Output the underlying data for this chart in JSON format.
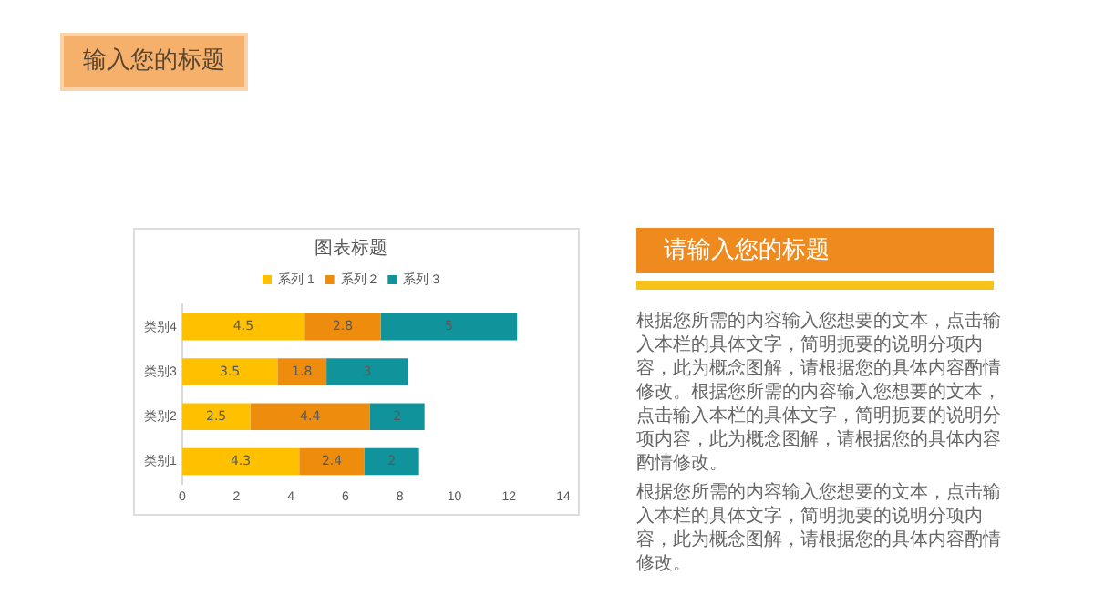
{
  "chart_data": {
    "type": "bar",
    "title": "图表标题",
    "orientation": "horizontal",
    "stacked": true,
    "categories": [
      "类别4",
      "类别3",
      "类别2",
      "类别1"
    ],
    "series": [
      {
        "name": "系列 1",
        "color": "#ffc000",
        "values": [
          4.5,
          3.5,
          2.5,
          4.3
        ]
      },
      {
        "name": "系列 2",
        "color": "#ee8c0e",
        "values": [
          2.8,
          1.8,
          4.4,
          2.4
        ]
      },
      {
        "name": "系列 3",
        "color": "#10939a",
        "values": [
          5,
          3,
          2,
          2
        ]
      }
    ],
    "xlim": [
      0,
      14
    ],
    "xticks": [
      0,
      2,
      4,
      6,
      8,
      10,
      12,
      14
    ],
    "grid": false,
    "legend": "top",
    "data_labels": true,
    "annotations": [
      "输入您的标题",
      "请输入您的标题",
      "根据您所需的内容输入您想要的文本，点击输入本栏的具体文字，简明扼要的说明分项内容，此为概念图解，请根据您的具体内容酌情修改。根据您所需的内容输入您想要的文本，点击输入本栏的具体文字，简明扼要的说明分项内容，此为概念图解，请根据您的具体内容酌情修改。",
      "根据您所需的内容输入您想要的文本，点击输入本栏的具体文字，简明扼要的说明分项内容，此为概念图解，请根据您的具体内容酌情修改。"
    ]
  }
}
